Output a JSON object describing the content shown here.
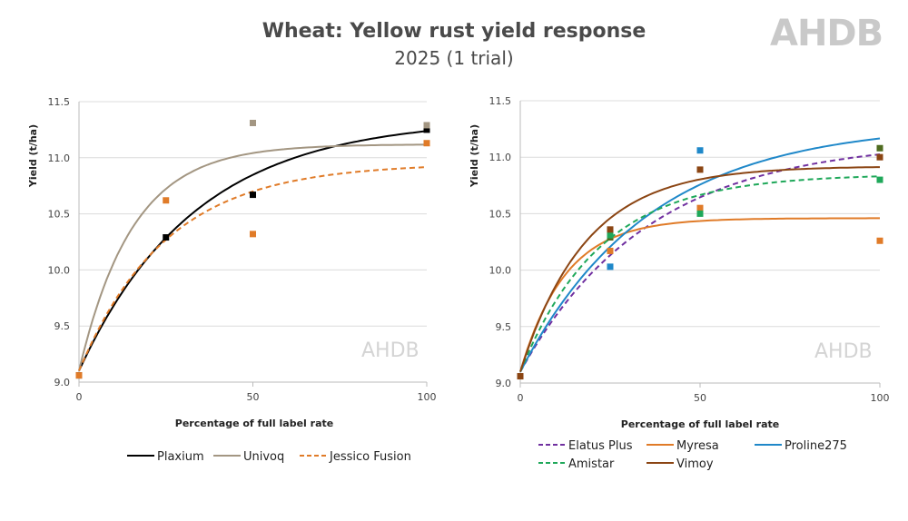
{
  "title": "Wheat: Yellow rust yield response",
  "subtitle": "2025 (1 trial)",
  "logo": "AHDB",
  "chart_data": [
    {
      "type": "line",
      "xlabel": "Percentage of full label rate",
      "ylabel": "Yield (t/ha)",
      "xlim": [
        0,
        100
      ],
      "ylim": [
        9.0,
        11.5
      ],
      "xticks": [
        "0",
        "50",
        "100"
      ],
      "yticks": [
        "9.0",
        "9.5",
        "10.0",
        "10.5",
        "11.0",
        "11.5"
      ],
      "grid": "horizontal",
      "legend": "bottom",
      "watermark": "AHDB",
      "series": [
        {
          "name": "Plaxium",
          "color": "#000000",
          "dash": false,
          "fit": {
            "start": 9.1,
            "gain": 2.25,
            "rate": 0.03
          },
          "points": [
            [
              0,
              9.06
            ],
            [
              25,
              10.29
            ],
            [
              50,
              10.67
            ],
            [
              100,
              11.25
            ]
          ]
        },
        {
          "name": "Univoq",
          "color": "#a39682",
          "dash": false,
          "fit": {
            "start": 9.1,
            "gain": 2.02,
            "rate": 0.065
          },
          "points": [
            [
              50,
              11.31
            ],
            [
              100,
              11.29
            ]
          ]
        },
        {
          "name": "Jessico Fusion",
          "color": "#e07b28",
          "dash": true,
          "fit": {
            "start": 9.1,
            "gain": 1.85,
            "rate": 0.04
          },
          "points": [
            [
              0,
              9.06
            ],
            [
              25,
              10.62
            ],
            [
              50,
              10.32
            ],
            [
              100,
              11.13
            ]
          ]
        }
      ]
    },
    {
      "type": "line",
      "xlabel": "Percentage of full label rate",
      "ylabel": "Yield (t/ha)",
      "xlim": [
        0,
        100
      ],
      "ylim": [
        9.0,
        11.5
      ],
      "xticks": [
        "0",
        "50",
        "100"
      ],
      "yticks": [
        "9.0",
        "9.5",
        "10.0",
        "10.5",
        "11.0",
        "11.5"
      ],
      "grid": "horizontal",
      "legend": "bottom",
      "watermark": "AHDB",
      "series": [
        {
          "name": "Elatus Plus",
          "color": "#7030a0",
          "dash": true,
          "fit": {
            "start": 9.1,
            "gain": 2.05,
            "rate": 0.028
          },
          "points": [
            [
              25,
              10.29
            ],
            [
              100,
              11.08
            ]
          ],
          "point_color": "#4e6b1f"
        },
        {
          "name": "Myresa",
          "color": "#e07b28",
          "dash": false,
          "fit": {
            "start": 9.1,
            "gain": 1.36,
            "rate": 0.08
          },
          "points": [
            [
              25,
              10.17
            ],
            [
              50,
              10.55
            ],
            [
              100,
              10.26
            ]
          ]
        },
        {
          "name": "Proline275",
          "color": "#1f88c9",
          "dash": false,
          "fit": {
            "start": 9.1,
            "gain": 2.2,
            "rate": 0.028
          },
          "points": [
            [
              25,
              10.03
            ],
            [
              50,
              11.06
            ]
          ]
        },
        {
          "name": "Amistar",
          "color": "#1fa85a",
          "dash": true,
          "fit": {
            "start": 9.1,
            "gain": 1.75,
            "rate": 0.045
          },
          "points": [
            [
              25,
              10.31
            ],
            [
              50,
              10.5
            ],
            [
              100,
              10.8
            ]
          ]
        },
        {
          "name": "Vimoy",
          "color": "#8b4513",
          "dash": false,
          "fit": {
            "start": 9.1,
            "gain": 1.82,
            "rate": 0.055
          },
          "points": [
            [
              0,
              9.06
            ],
            [
              25,
              10.36
            ],
            [
              50,
              10.89
            ],
            [
              100,
              11.0
            ]
          ]
        }
      ]
    }
  ]
}
